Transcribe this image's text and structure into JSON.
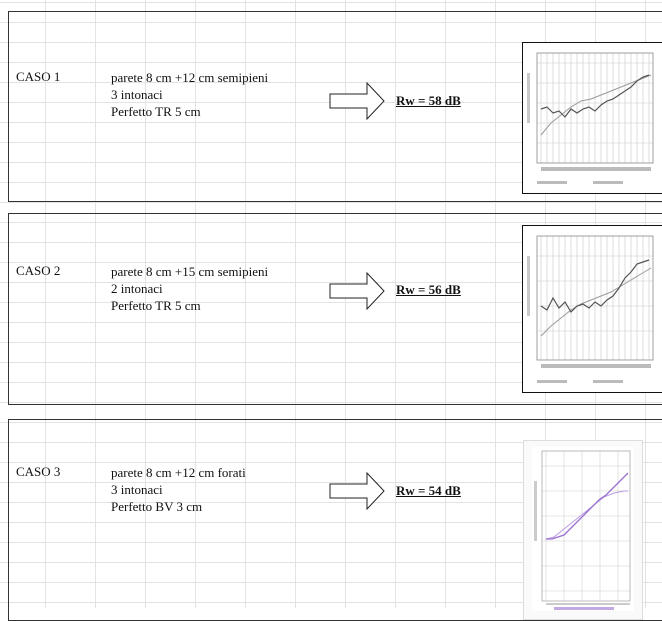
{
  "cases": [
    {
      "label": "CASO 1",
      "lines": [
        "parete 8 cm +12 cm semipieni",
        "3 intonaci",
        "Perfetto TR 5 cm"
      ],
      "rw": "Rw = 58 dB"
    },
    {
      "label": "CASO 2",
      "lines": [
        "parete 8 cm +15 cm semipieni",
        "2 intonaci",
        "Perfetto TR 5 cm"
      ],
      "rw": "Rw = 56 dB"
    },
    {
      "label": "CASO 3",
      "lines": [
        "parete 8 cm +12 cm forati",
        "3 intonaci",
        "Perfetto BV 3 cm"
      ],
      "rw": "Rw = 54 dB"
    }
  ],
  "colors": {
    "border": "#333333",
    "grid": "#e3e3e3",
    "curve_measured": "#555555",
    "curve_reference": "#999999",
    "curve_case3_measured": "#9a6fd1",
    "curve_case3_reference": "#b89ae0"
  }
}
